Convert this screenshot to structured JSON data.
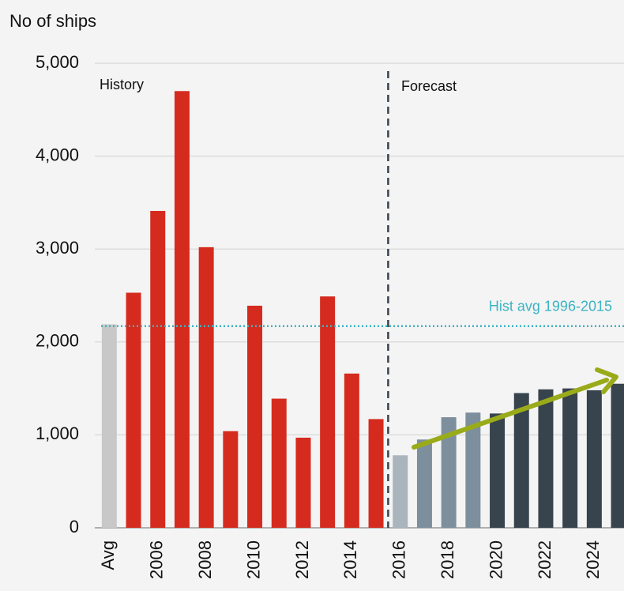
{
  "chart_data": {
    "type": "bar",
    "y_axis_label": "No of ships",
    "categories": [
      "Avg",
      null,
      "2006",
      null,
      "2008",
      null,
      "2010",
      null,
      "2012",
      null,
      "2014",
      null,
      "2016",
      null,
      "2018",
      null,
      "2020",
      null,
      "2022",
      null,
      "2024",
      null
    ],
    "values": [
      2190,
      2530,
      3410,
      4700,
      3020,
      1040,
      2390,
      1390,
      970,
      2490,
      1660,
      1170,
      780,
      950,
      1190,
      1240,
      1230,
      1450,
      1490,
      1500,
      1480,
      1550
    ],
    "colors": [
      "#c8c8c8",
      "#d52b1e",
      "#d52b1e",
      "#d52b1e",
      "#d52b1e",
      "#d52b1e",
      "#d52b1e",
      "#d52b1e",
      "#d52b1e",
      "#d52b1e",
      "#d52b1e",
      "#d52b1e",
      "#a9b4bd",
      "#7d8f9d",
      "#7d8f9d",
      "#7d8f9d",
      "#37434d",
      "#37434d",
      "#37434d",
      "#37434d",
      "#37434d",
      "#37434d"
    ],
    "ylim": [
      0,
      5000
    ],
    "yticks": [
      0,
      {
        "value": 1000,
        "label": "1,000"
      },
      {
        "value": 2000,
        "label": "2,000"
      },
      {
        "value": 3000,
        "label": "3,000"
      },
      {
        "value": 4000,
        "label": "4,000"
      },
      {
        "value": 5000,
        "label": "5,000"
      }
    ],
    "grid": true,
    "annotations": [
      "History",
      "Forecast"
    ],
    "reference_line": {
      "value": 2170,
      "label": "Hist avg 1996-2015",
      "color": "#3bb3c3"
    }
  }
}
